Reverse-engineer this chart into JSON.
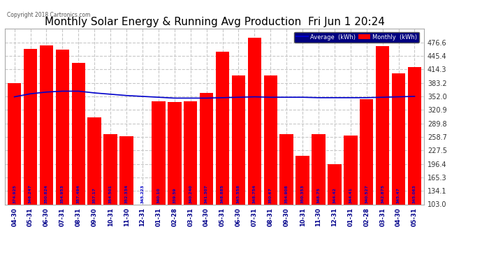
{
  "title": "Monthly Solar Energy & Running Avg Production  Fri Jun 1 20:24",
  "copyright": "Copyright 2018 Cartronics.com",
  "categories": [
    "04-30",
    "05-31",
    "06-30",
    "07-31",
    "08-31",
    "09-30",
    "10-31",
    "11-30",
    "12-31",
    "01-31",
    "02-28",
    "03-31",
    "04-30",
    "05-31",
    "06-30",
    "07-31",
    "08-31",
    "09-30",
    "10-31",
    "11-30",
    "12-31",
    "01-31",
    "02-28",
    "03-31",
    "04-30",
    "05-31"
  ],
  "monthly_values": [
    383,
    461,
    470,
    460,
    430,
    303,
    265,
    260,
    103,
    340,
    339,
    340,
    360,
    455,
    400,
    487,
    400,
    265,
    215,
    265,
    196,
    262,
    345,
    468,
    405,
    420
  ],
  "bar_labels": [
    "374.925",
    "346.247",
    "350.824",
    "354.953",
    "357.494",
    "357.17",
    "354.501",
    "352.334",
    "345.223",
    "340.10",
    "339.59",
    "340.240",
    "341.307",
    "348.885",
    "345.558",
    "348.754",
    "350.67",
    "354.908",
    "350.353",
    "348.75",
    "344.42",
    "344.41",
    "340.527",
    "342.875",
    "345.47",
    "345.063"
  ],
  "avg_values": [
    351,
    358,
    362,
    364,
    364,
    360,
    357,
    354,
    352,
    350,
    348,
    348,
    348,
    349,
    350,
    351,
    350,
    350,
    350,
    349,
    349,
    349,
    349,
    350,
    351,
    352
  ],
  "bar_color": "#ff0000",
  "bar_color_special": "#ffffff",
  "special_bar_index": 8,
  "avg_line_color": "#0000cc",
  "label_color_normal": "#0000cc",
  "background_color": "#ffffff",
  "plot_bg_color": "#ffffff",
  "grid_color": "#c8c8c8",
  "ylim_min": 103.0,
  "ylim_max": 507.8,
  "yticks": [
    103.0,
    134.1,
    165.3,
    196.4,
    227.5,
    258.7,
    289.8,
    320.9,
    352.0,
    383.2,
    414.3,
    445.4,
    476.6
  ],
  "title_fontsize": 11,
  "legend_avg_label": "Average  (kWh)",
  "legend_monthly_label": "Monthly  (kWh)"
}
